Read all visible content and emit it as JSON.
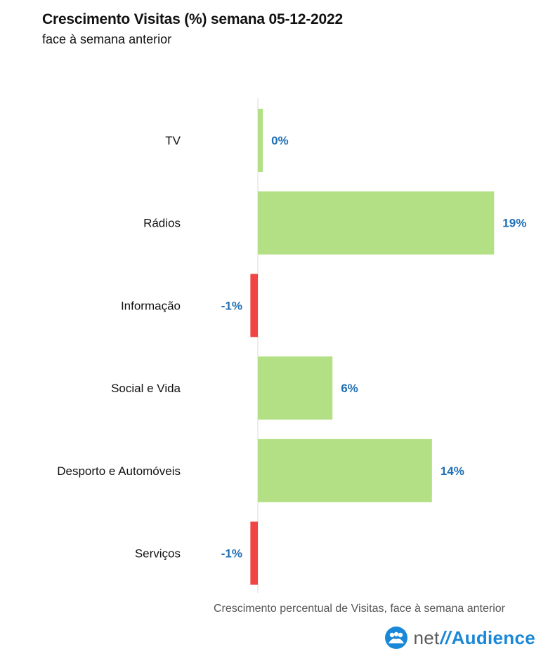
{
  "header": {
    "title": "Crescimento Visitas (%) semana 05-12-2022",
    "subtitle": "face à semana anterior"
  },
  "footnote": "Crescimento percentual de Visitas, face à semana anterior",
  "logo": {
    "net": "net",
    "sep": "//",
    "brand": "Audience"
  },
  "colors": {
    "positive": "#b3df85",
    "negative": "#f14444",
    "label": "#1f6fb5",
    "axis": "#d9d9d9",
    "brand": "#1a88d8"
  },
  "chart_data": {
    "type": "bar",
    "orientation": "horizontal",
    "categories": [
      "TV",
      "Rádios",
      "Informação",
      "Social e Vida",
      "Desporto e Automóveis",
      "Serviços"
    ],
    "values": [
      0.4,
      19,
      -0.6,
      6,
      14,
      -0.6
    ],
    "value_labels": [
      "0%",
      "19%",
      "-1%",
      "6%",
      "14%",
      "-1%"
    ],
    "unit": "%",
    "xlim": [
      -1,
      20
    ]
  }
}
